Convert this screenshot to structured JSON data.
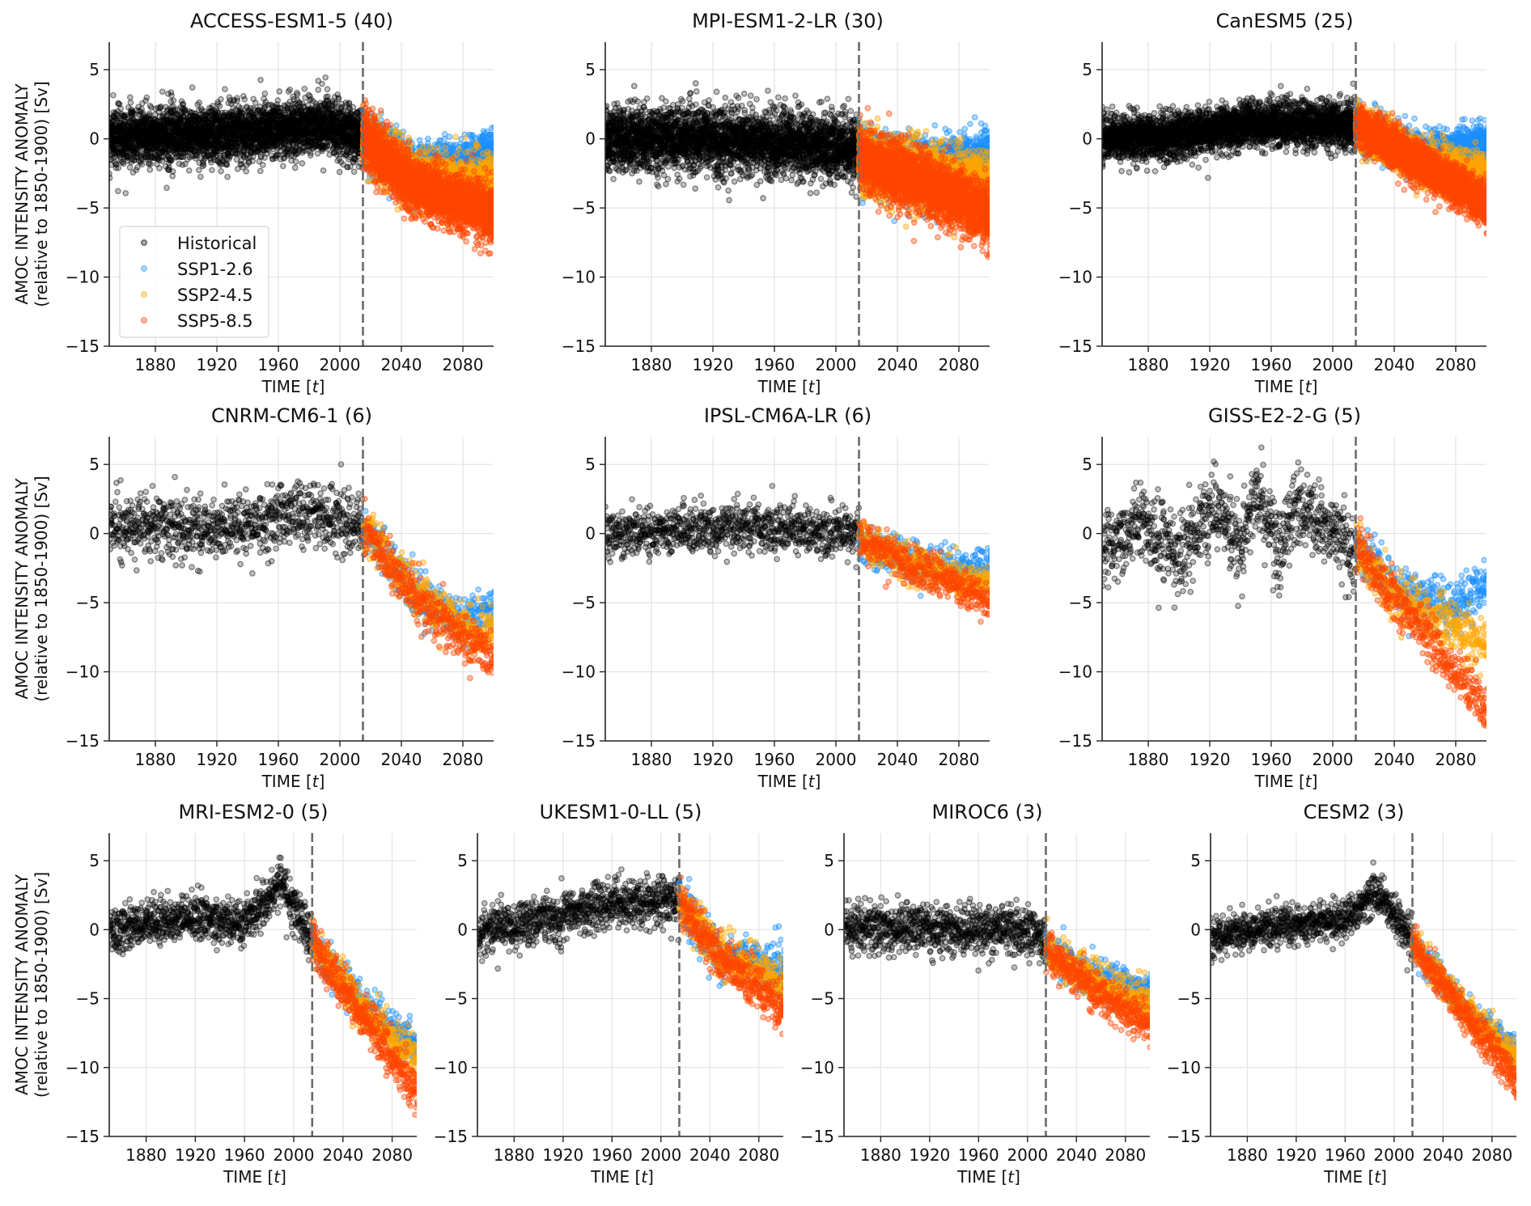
{
  "figure": {
    "ylabel_line1": "AMOC INTENSITY ANOMALY",
    "ylabel_line2": "(relative to 1850-1900) [Sv]",
    "xlabel_prefix": "TIME [",
    "xlabel_var": "t",
    "xlabel_suffix": "]"
  },
  "chart_data": {
    "type": "scatter",
    "xlim": [
      1850,
      2100
    ],
    "ylim": [
      -15,
      7
    ],
    "xticks": [
      1880,
      1920,
      1960,
      2000,
      2040,
      2080
    ],
    "yticks": [
      5,
      0,
      -5,
      -10,
      -15
    ],
    "ytick_labels": [
      "5",
      "0",
      "−5",
      "−10",
      "−15"
    ],
    "grid": true,
    "scenario_boundary_year": 2015,
    "legend": {
      "placement": "lower-left (first panel only)",
      "entries": [
        {
          "key": "historical",
          "label": "Historical",
          "color": "#000000"
        },
        {
          "key": "ssp126",
          "label": "SSP1-2.6",
          "color": "#1e90ff"
        },
        {
          "key": "ssp245",
          "label": "SSP2-4.5",
          "color": "#ffa500"
        },
        {
          "key": "ssp585",
          "label": "SSP5-8.5",
          "color": "#ff4500"
        }
      ]
    },
    "panels": [
      {
        "model": "ACCESS-ESM1-5",
        "members": 40,
        "title": "ACCESS-ESM1-5 (40)",
        "density": "dense",
        "historical": {
          "anchors": [
            [
              1850,
              0.2
            ],
            [
              1900,
              0.3
            ],
            [
              1960,
              0.6
            ],
            [
              1985,
              1.0
            ],
            [
              2015,
              0.2
            ]
          ],
          "spread": 1.1
        },
        "ssp126": {
          "anchors": [
            [
              2015,
              0.0
            ],
            [
              2050,
              -2.5
            ],
            [
              2080,
              -2.2
            ],
            [
              2100,
              -1.3
            ]
          ],
          "spread": 1.0
        },
        "ssp245": {
          "anchors": [
            [
              2015,
              0.0
            ],
            [
              2050,
              -3.0
            ],
            [
              2100,
              -3.5
            ]
          ],
          "spread": 1.0
        },
        "ssp585": {
          "anchors": [
            [
              2015,
              0.0
            ],
            [
              2050,
              -3.5
            ],
            [
              2100,
              -5.5
            ]
          ],
          "spread": 1.1
        }
      },
      {
        "model": "MPI-ESM1-2-LR",
        "members": 30,
        "title": "MPI-ESM1-2-LR (30)",
        "density": "dense",
        "historical": {
          "anchors": [
            [
              1850,
              0.0
            ],
            [
              1920,
              0.0
            ],
            [
              2015,
              -0.8
            ]
          ],
          "spread": 1.3
        },
        "ssp126": {
          "anchors": [
            [
              2015,
              -1.5
            ],
            [
              2060,
              -2.5
            ],
            [
              2100,
              -1.5
            ]
          ],
          "spread": 1.2
        },
        "ssp245": {
          "anchors": [
            [
              2015,
              -1.5
            ],
            [
              2060,
              -3.0
            ],
            [
              2100,
              -3.5
            ]
          ],
          "spread": 1.2
        },
        "ssp585": {
          "anchors": [
            [
              2015,
              -1.5
            ],
            [
              2060,
              -3.3
            ],
            [
              2100,
              -5.5
            ]
          ],
          "spread": 1.2
        }
      },
      {
        "model": "CanESM5",
        "members": 25,
        "title": "CanESM5 (25)",
        "density": "dense",
        "historical": {
          "anchors": [
            [
              1850,
              0.0
            ],
            [
              1900,
              0.2
            ],
            [
              1960,
              1.2
            ],
            [
              2015,
              1.0
            ]
          ],
          "spread": 0.9
        },
        "ssp126": {
          "anchors": [
            [
              2015,
              1.0
            ],
            [
              2060,
              -1.5
            ],
            [
              2100,
              -0.5
            ]
          ],
          "spread": 0.8
        },
        "ssp245": {
          "anchors": [
            [
              2015,
              1.0
            ],
            [
              2060,
              -1.8
            ],
            [
              2100,
              -2.8
            ]
          ],
          "spread": 0.8
        },
        "ssp585": {
          "anchors": [
            [
              2015,
              1.0
            ],
            [
              2060,
              -2.0
            ],
            [
              2100,
              -4.8
            ]
          ],
          "spread": 0.8
        }
      },
      {
        "model": "CNRM-CM6-1",
        "members": 6,
        "title": "CNRM-CM6-1 (6)",
        "density": "medium",
        "historical": {
          "anchors": [
            [
              1850,
              0.5
            ],
            [
              1920,
              0.3
            ],
            [
              1980,
              1.5
            ],
            [
              2015,
              0.7
            ]
          ],
          "spread": 1.3
        },
        "ssp126": {
          "anchors": [
            [
              2015,
              0.5
            ],
            [
              2050,
              -4.5
            ],
            [
              2080,
              -6.5
            ],
            [
              2100,
              -5.5
            ]
          ],
          "spread": 0.9
        },
        "ssp245": {
          "anchors": [
            [
              2015,
              0.5
            ],
            [
              2050,
              -4.3
            ],
            [
              2080,
              -6.8
            ],
            [
              2100,
              -7.2
            ]
          ],
          "spread": 0.9
        },
        "ssp585": {
          "anchors": [
            [
              2015,
              0.5
            ],
            [
              2050,
              -4.7
            ],
            [
              2080,
              -7.5
            ],
            [
              2100,
              -9.0
            ]
          ],
          "spread": 0.9
        }
      },
      {
        "model": "IPSL-CM6A-LR",
        "members": 6,
        "title": "IPSL-CM6A-LR (6)",
        "density": "medium",
        "historical": {
          "anchors": [
            [
              1850,
              0.0
            ],
            [
              1930,
              0.5
            ],
            [
              2015,
              0.0
            ]
          ],
          "spread": 1.0
        },
        "ssp126": {
          "anchors": [
            [
              2015,
              -0.5
            ],
            [
              2060,
              -2.5
            ],
            [
              2100,
              -2.5
            ]
          ],
          "spread": 0.8
        },
        "ssp245": {
          "anchors": [
            [
              2015,
              -0.5
            ],
            [
              2060,
              -2.7
            ],
            [
              2100,
              -3.5
            ]
          ],
          "spread": 0.8
        },
        "ssp585": {
          "anchors": [
            [
              2015,
              -0.5
            ],
            [
              2060,
              -2.8
            ],
            [
              2100,
              -4.8
            ]
          ],
          "spread": 0.8
        }
      },
      {
        "model": "GISS-E2-2-G",
        "members": 5,
        "title": "GISS-E2-2-G (5)",
        "density": "medium",
        "historical": {
          "anchors": [
            [
              1850,
              -1.0
            ],
            [
              1880,
              0.5
            ],
            [
              1900,
              -1.5
            ],
            [
              1925,
              2.0
            ],
            [
              1940,
              -1.0
            ],
            [
              1950,
              3.0
            ],
            [
              1965,
              -1.5
            ],
            [
              1975,
              2.0
            ],
            [
              2000,
              0.5
            ],
            [
              2015,
              -2.0
            ]
          ],
          "spread": 1.6
        },
        "ssp126": {
          "anchors": [
            [
              2015,
              -1.0
            ],
            [
              2040,
              -4.0
            ],
            [
              2080,
              -5.5
            ],
            [
              2100,
              -3.5
            ]
          ],
          "spread": 1.0
        },
        "ssp245": {
          "anchors": [
            [
              2015,
              -1.0
            ],
            [
              2040,
              -4.5
            ],
            [
              2080,
              -7.0
            ],
            [
              2100,
              -8.0
            ]
          ],
          "spread": 1.0
        },
        "ssp585": {
          "anchors": [
            [
              2015,
              -1.0
            ],
            [
              2040,
              -4.5
            ],
            [
              2080,
              -10.0
            ],
            [
              2100,
              -13.0
            ]
          ],
          "spread": 1.0
        }
      },
      {
        "model": "MRI-ESM2-0",
        "members": 5,
        "title": "MRI-ESM2-0 (5)",
        "density": "medium",
        "historical": {
          "anchors": [
            [
              1850,
              0.0
            ],
            [
              1920,
              1.0
            ],
            [
              1960,
              0.5
            ],
            [
              1990,
              3.5
            ],
            [
              2015,
              -1.0
            ]
          ],
          "spread": 0.9
        },
        "ssp126": {
          "anchors": [
            [
              2015,
              -1.0
            ],
            [
              2060,
              -6.0
            ],
            [
              2100,
              -8.5
            ]
          ],
          "spread": 0.8
        },
        "ssp245": {
          "anchors": [
            [
              2015,
              -1.0
            ],
            [
              2060,
              -6.2
            ],
            [
              2100,
              -9.5
            ]
          ],
          "spread": 0.8
        },
        "ssp585": {
          "anchors": [
            [
              2015,
              -1.0
            ],
            [
              2060,
              -6.8
            ],
            [
              2100,
              -12.0
            ]
          ],
          "spread": 0.9
        }
      },
      {
        "model": "UKESM1-0-LL",
        "members": 5,
        "title": "UKESM1-0-LL (5)",
        "density": "medium",
        "historical": {
          "anchors": [
            [
              1850,
              -0.2
            ],
            [
              1920,
              1.0
            ],
            [
              1970,
              2.0
            ],
            [
              2015,
              2.2
            ]
          ],
          "spread": 1.0
        },
        "ssp126": {
          "anchors": [
            [
              2015,
              2.0
            ],
            [
              2050,
              -2.0
            ],
            [
              2100,
              -3.0
            ]
          ],
          "spread": 0.9
        },
        "ssp245": {
          "anchors": [
            [
              2015,
              2.0
            ],
            [
              2050,
              -2.0
            ],
            [
              2100,
              -4.0
            ]
          ],
          "spread": 0.9
        },
        "ssp585": {
          "anchors": [
            [
              2015,
              2.0
            ],
            [
              2050,
              -2.3
            ],
            [
              2100,
              -5.8
            ]
          ],
          "spread": 0.9
        }
      },
      {
        "model": "MIROC6",
        "members": 3,
        "title": "MIROC6 (3)",
        "density": "medium",
        "historical": {
          "anchors": [
            [
              1850,
              0.2
            ],
            [
              1950,
              0.0
            ],
            [
              2000,
              0.0
            ],
            [
              2015,
              -1.0
            ]
          ],
          "spread": 1.0
        },
        "ssp126": {
          "anchors": [
            [
              2015,
              -1.5
            ],
            [
              2060,
              -3.8
            ],
            [
              2100,
              -4.5
            ]
          ],
          "spread": 0.8
        },
        "ssp245": {
          "anchors": [
            [
              2015,
              -1.5
            ],
            [
              2060,
              -4.2
            ],
            [
              2100,
              -5.5
            ]
          ],
          "spread": 0.8
        },
        "ssp585": {
          "anchors": [
            [
              2015,
              -1.5
            ],
            [
              2060,
              -4.8
            ],
            [
              2100,
              -7.0
            ]
          ],
          "spread": 0.8
        }
      },
      {
        "model": "CESM2",
        "members": 3,
        "title": "CESM2 (3)",
        "density": "medium",
        "historical": {
          "anchors": [
            [
              1850,
              -0.8
            ],
            [
              1900,
              0.3
            ],
            [
              1960,
              0.6
            ],
            [
              1985,
              2.8
            ],
            [
              2015,
              -0.7
            ]
          ],
          "spread": 0.8
        },
        "ssp126": {
          "anchors": [
            [
              2015,
              -1.0
            ],
            [
              2060,
              -6.0
            ],
            [
              2100,
              -9.0
            ]
          ],
          "spread": 0.6
        },
        "ssp245": {
          "anchors": [
            [
              2015,
              -1.0
            ],
            [
              2060,
              -6.0
            ],
            [
              2100,
              -9.3
            ]
          ],
          "spread": 0.6
        },
        "ssp585": {
          "anchors": [
            [
              2015,
              -1.0
            ],
            [
              2060,
              -6.3
            ],
            [
              2100,
              -11.0
            ]
          ],
          "spread": 0.7
        }
      }
    ]
  }
}
